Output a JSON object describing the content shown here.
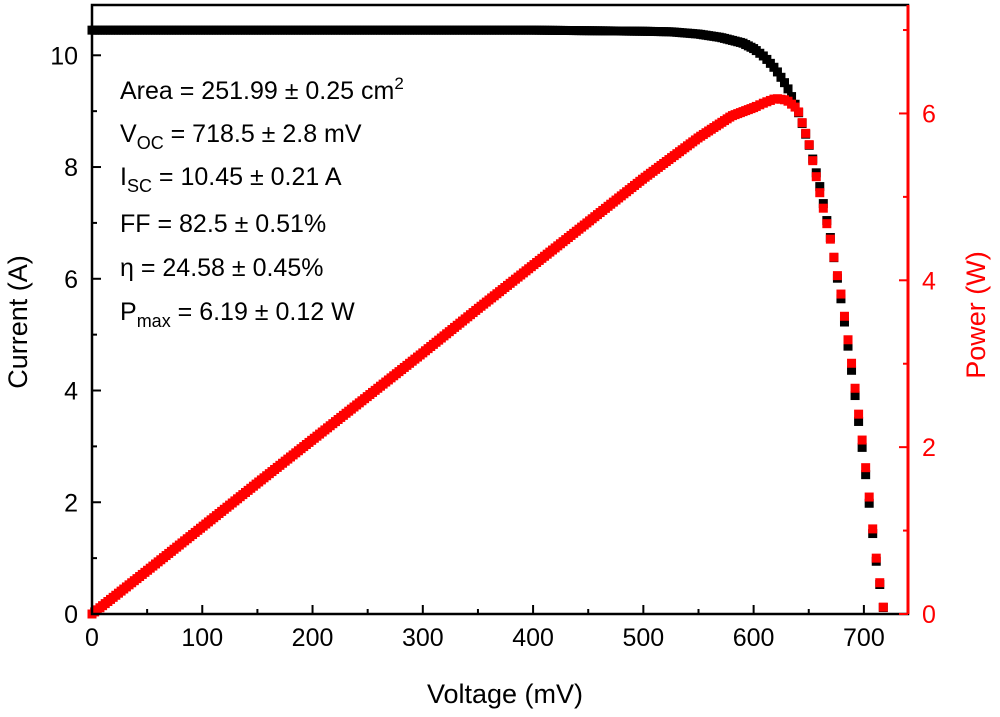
{
  "chart_data": {
    "type": "scatter",
    "xlabel": "Voltage (mV)",
    "ylabel": "Current (A)",
    "y2label": "Power (W)",
    "xlim": [
      0,
      740
    ],
    "ylim": [
      0,
      10.9
    ],
    "y2lim": [
      0,
      7.3
    ],
    "x_ticks": [
      "0",
      "100",
      "200",
      "300",
      "400",
      "500",
      "600",
      "700"
    ],
    "y_ticks": [
      "0",
      "2",
      "4",
      "6",
      "8",
      "10"
    ],
    "y2_ticks": [
      "0",
      "2",
      "4",
      "6"
    ],
    "grid": false,
    "colors": {
      "current": "#000000",
      "power": "#ff0000"
    },
    "annotations": {
      "area": {
        "label": "Area = 251.99 ± 0.25 cm",
        "sup": "2"
      },
      "voc": {
        "label": "V",
        "sub": "OC",
        "value": " = 718.5 ± 2.8 mV"
      },
      "isc": {
        "label": "I",
        "sub": "SC",
        "value": " = 10.45 ± 0.21 A"
      },
      "ff": {
        "label": "FF = 82.5 ± 0.51%"
      },
      "eta": {
        "label": "η = 24.58 ± 0.45%"
      },
      "pmax": {
        "label": "P",
        "sub": "max",
        "value": " = 6.19 ± 0.12 W"
      }
    },
    "series": [
      {
        "axis": "left",
        "x": [
          0,
          50,
          100,
          150,
          200,
          250,
          300,
          350,
          400,
          450,
          500,
          525,
          550,
          570,
          590,
          600,
          610,
          620,
          630,
          640,
          650,
          660,
          670,
          680,
          690,
          700,
          705,
          710,
          715,
          718.5
        ],
        "values": [
          10.45,
          10.45,
          10.45,
          10.45,
          10.45,
          10.45,
          10.45,
          10.45,
          10.45,
          10.44,
          10.43,
          10.42,
          10.38,
          10.32,
          10.22,
          10.12,
          9.97,
          9.75,
          9.45,
          9.02,
          8.42,
          7.65,
          6.7,
          5.55,
          4.2,
          2.75,
          1.95,
          1.1,
          0.45,
          0.0
        ]
      },
      {
        "axis": "right",
        "x": [
          0,
          50,
          100,
          150,
          200,
          250,
          300,
          350,
          400,
          450,
          500,
          550,
          580,
          600,
          610,
          620,
          630,
          640,
          650,
          660,
          670,
          680,
          690,
          700,
          705,
          710,
          715,
          718.5
        ],
        "values": [
          0,
          0.52,
          1.045,
          1.57,
          2.09,
          2.61,
          3.13,
          3.66,
          4.18,
          4.7,
          5.22,
          5.71,
          5.97,
          6.07,
          6.13,
          6.18,
          6.16,
          6.05,
          5.65,
          5.05,
          4.47,
          3.78,
          2.9,
          1.93,
          1.38,
          0.78,
          0.32,
          0.0
        ]
      }
    ]
  }
}
